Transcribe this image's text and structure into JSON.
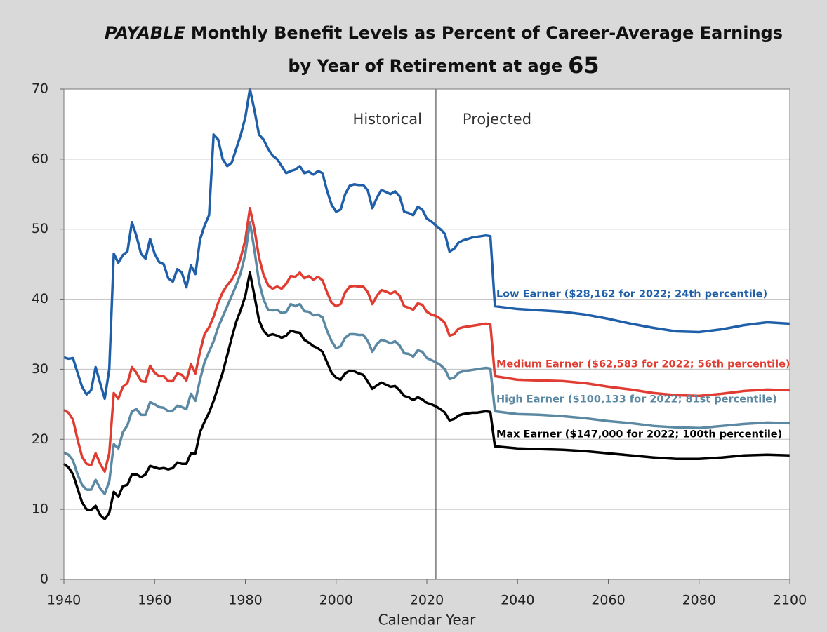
{
  "chart_data": {
    "type": "line",
    "title": {
      "emphasis": "PAYABLE",
      "text": "Monthly Benefit Levels as Percent of Career-Average Earnings"
    },
    "subtitle": {
      "text": "by Year of Retirement at age",
      "age": "65"
    },
    "x_label": "Calendar Year",
    "annotations": {
      "historical": "Historical",
      "projected": "Projected"
    },
    "divider_x": 2022,
    "xlim": [
      1940,
      2100
    ],
    "xticks": [
      1940,
      1960,
      1980,
      2000,
      2020,
      2040,
      2060,
      2080,
      2100
    ],
    "ylim": [
      0,
      70
    ],
    "yticks": [
      0,
      10,
      20,
      30,
      40,
      50,
      60,
      70
    ],
    "grid": true,
    "x": [
      1940,
      1941,
      1942,
      1943,
      1944,
      1945,
      1946,
      1947,
      1948,
      1949,
      1950,
      1951,
      1952,
      1953,
      1954,
      1955,
      1956,
      1957,
      1958,
      1959,
      1960,
      1961,
      1962,
      1963,
      1964,
      1965,
      1966,
      1967,
      1968,
      1969,
      1970,
      1971,
      1972,
      1973,
      1974,
      1975,
      1976,
      1977,
      1978,
      1979,
      1980,
      1981,
      1982,
      1983,
      1984,
      1985,
      1986,
      1987,
      1988,
      1989,
      1990,
      1991,
      1992,
      1993,
      1994,
      1995,
      1996,
      1997,
      1998,
      1999,
      2000,
      2001,
      2002,
      2003,
      2004,
      2005,
      2006,
      2007,
      2008,
      2009,
      2010,
      2011,
      2012,
      2013,
      2014,
      2015,
      2016,
      2017,
      2018,
      2019,
      2020,
      2021,
      2022,
      2023,
      2024,
      2025,
      2026,
      2027,
      2028,
      2029,
      2030,
      2031,
      2032,
      2033,
      2034,
      2035,
      2040,
      2045,
      2050,
      2055,
      2060,
      2065,
      2070,
      2075,
      2080,
      2085,
      2090,
      2095,
      2100
    ],
    "series": [
      {
        "name": "Low Earner ($28,162 for 2022; 24th percentile)",
        "color": "#1f5ea8",
        "values": [
          31.7,
          31.5,
          31.6,
          29.5,
          27.5,
          26.4,
          27,
          30.3,
          28,
          25.8,
          30,
          46.5,
          45.2,
          46.3,
          46.8,
          51,
          49,
          46.5,
          45.8,
          48.6,
          46.5,
          45.3,
          45,
          43,
          42.5,
          44.3,
          43.8,
          41.7,
          44.8,
          43.6,
          48.5,
          50.5,
          52,
          63.5,
          62.8,
          60,
          59,
          59.5,
          61.5,
          63.5,
          66,
          70,
          67,
          63.5,
          62.8,
          61.5,
          60.5,
          60,
          59,
          58,
          58.3,
          58.5,
          59,
          58,
          58.2,
          57.8,
          58.3,
          58,
          55.5,
          53.5,
          52.5,
          52.8,
          55,
          56.2,
          56.4,
          56.3,
          56.3,
          55.5,
          53,
          54.5,
          55.6,
          55.3,
          55,
          55.4,
          54.7,
          52.5,
          52.3,
          52,
          53.2,
          52.8,
          51.5,
          51.1,
          50.5,
          50,
          49.3,
          46.8,
          47.2,
          48.1,
          48.4,
          48.6,
          48.8,
          48.9,
          49,
          49.1,
          49,
          39,
          38.6,
          38.4,
          38.2,
          37.8,
          37.2,
          36.5,
          35.9,
          35.4,
          35.3,
          35.7,
          36.3,
          36.7,
          36.5
        ]
      },
      {
        "name": "Medium Earner ($62,583 for 2022; 56th percentile)",
        "color": "#e03c31",
        "values": [
          24.2,
          23.8,
          22.8,
          20,
          17.5,
          16.5,
          16.3,
          18,
          16.5,
          15.4,
          18,
          26.6,
          25.8,
          27.5,
          28,
          30.3,
          29.5,
          28.3,
          28.2,
          30.5,
          29.5,
          29,
          29,
          28.3,
          28.3,
          29.4,
          29.2,
          28.4,
          30.7,
          29.4,
          32.5,
          35,
          36,
          37.5,
          39.5,
          41,
          42,
          42.8,
          44,
          46,
          48.5,
          53,
          50,
          46,
          43.5,
          42,
          41.5,
          41.8,
          41.5,
          42.2,
          43.3,
          43.2,
          43.8,
          43,
          43.3,
          42.8,
          43.2,
          42.7,
          41,
          39.5,
          39,
          39.3,
          41,
          41.8,
          41.9,
          41.8,
          41.8,
          41,
          39.3,
          40.5,
          41.3,
          41.1,
          40.8,
          41.1,
          40.5,
          39,
          38.8,
          38.5,
          39.4,
          39.2,
          38.2,
          37.8,
          37.6,
          37.2,
          36.6,
          34.8,
          35,
          35.8,
          36,
          36.1,
          36.2,
          36.3,
          36.4,
          36.5,
          36.4,
          29,
          28.5,
          28.4,
          28.3,
          28,
          27.5,
          27.1,
          26.6,
          26.3,
          26.2,
          26.5,
          26.9,
          27.1,
          27
        ]
      },
      {
        "name": "High Earner ($100,133 for 2022; 81st percentile)",
        "color": "#5b88a2",
        "values": [
          18.1,
          17.8,
          17,
          15,
          13.5,
          12.8,
          12.8,
          14.2,
          13,
          12.2,
          14,
          19.3,
          18.7,
          21,
          22,
          24,
          24.3,
          23.5,
          23.5,
          25.3,
          25,
          24.6,
          24.5,
          24,
          24.1,
          24.8,
          24.6,
          24.3,
          26.5,
          25.5,
          28.5,
          31,
          32.5,
          34,
          36,
          37.5,
          39,
          40.5,
          42,
          43.8,
          46.5,
          51,
          47,
          42.5,
          40,
          38.5,
          38.4,
          38.5,
          38,
          38.2,
          39.3,
          39,
          39.3,
          38.3,
          38.2,
          37.7,
          37.8,
          37.4,
          35.5,
          34,
          33,
          33.3,
          34.5,
          35,
          35,
          34.9,
          34.9,
          34,
          32.5,
          33.6,
          34.2,
          34,
          33.7,
          34,
          33.4,
          32.3,
          32.2,
          31.8,
          32.7,
          32.5,
          31.6,
          31.3,
          31,
          30.6,
          30,
          28.6,
          28.8,
          29.5,
          29.7,
          29.8,
          29.9,
          30,
          30.1,
          30.2,
          30.1,
          24,
          23.6,
          23.5,
          23.3,
          23,
          22.6,
          22.3,
          21.9,
          21.7,
          21.6,
          21.9,
          22.2,
          22.4,
          22.3
        ]
      },
      {
        "name": "Max Earner ($147,000 for 2022; 100th percentile)",
        "color": "#000000",
        "values": [
          16.5,
          16,
          15,
          13,
          11,
          10,
          9.9,
          10.5,
          9.2,
          8.6,
          9.5,
          12.5,
          11.8,
          13.3,
          13.5,
          15,
          15,
          14.6,
          15,
          16.2,
          16,
          15.8,
          15.9,
          15.7,
          15.9,
          16.7,
          16.5,
          16.5,
          18,
          18,
          21,
          22.5,
          23.8,
          25.5,
          27.5,
          29.5,
          32,
          34.5,
          36.8,
          38.5,
          40.5,
          43.8,
          40.5,
          37,
          35.5,
          34.8,
          35,
          34.8,
          34.5,
          34.8,
          35.5,
          35.3,
          35.2,
          34.2,
          33.8,
          33.3,
          33,
          32.5,
          31,
          29.5,
          28.8,
          28.5,
          29.4,
          29.8,
          29.7,
          29.4,
          29.2,
          28.2,
          27.2,
          27.7,
          28.1,
          27.8,
          27.5,
          27.6,
          27,
          26.2,
          26,
          25.6,
          26,
          25.7,
          25.2,
          25,
          24.7,
          24.3,
          23.8,
          22.7,
          22.9,
          23.4,
          23.6,
          23.7,
          23.8,
          23.8,
          23.9,
          24,
          23.9,
          19,
          18.7,
          18.6,
          18.5,
          18.3,
          18,
          17.7,
          17.4,
          17.2,
          17.2,
          17.4,
          17.7,
          17.8,
          17.7
        ]
      }
    ]
  }
}
